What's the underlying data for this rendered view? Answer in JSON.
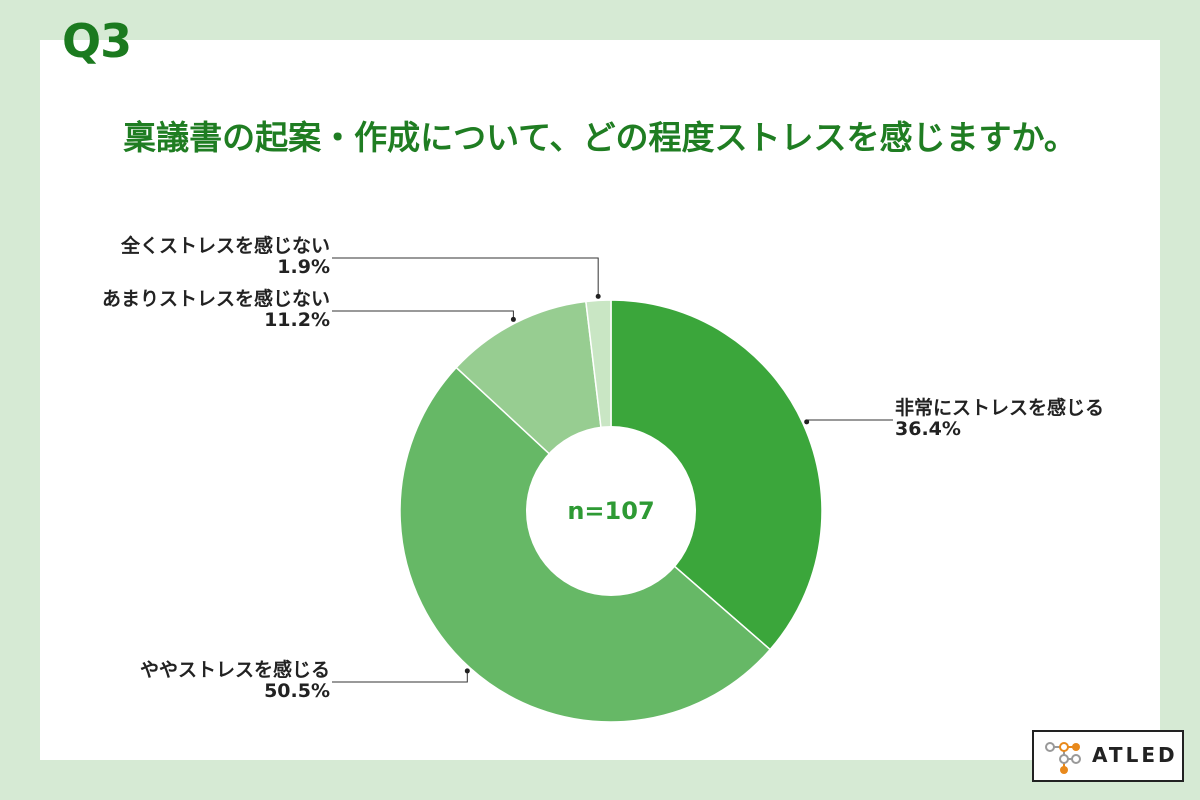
{
  "question_label": "Q3",
  "title": "稟議書の起案・作成について、どの程度ストレスを感じますか。",
  "chart_data": {
    "type": "pie",
    "center_label": "n=107",
    "slices": [
      {
        "label": "非常にストレスを感じる",
        "value": 36.4,
        "display": "36.4%",
        "color": "#3ba63b"
      },
      {
        "label": "ややストレスを感じる",
        "value": 50.5,
        "display": "50.5%",
        "color": "#66b866"
      },
      {
        "label": "あまりストレスを感じない",
        "value": 11.2,
        "display": "11.2%",
        "color": "#97cd91"
      },
      {
        "label": "全くストレスを感じない",
        "value": 1.9,
        "display": "1.9%",
        "color": "#c9e6c4"
      }
    ]
  },
  "logo": {
    "text": "ATLED"
  }
}
